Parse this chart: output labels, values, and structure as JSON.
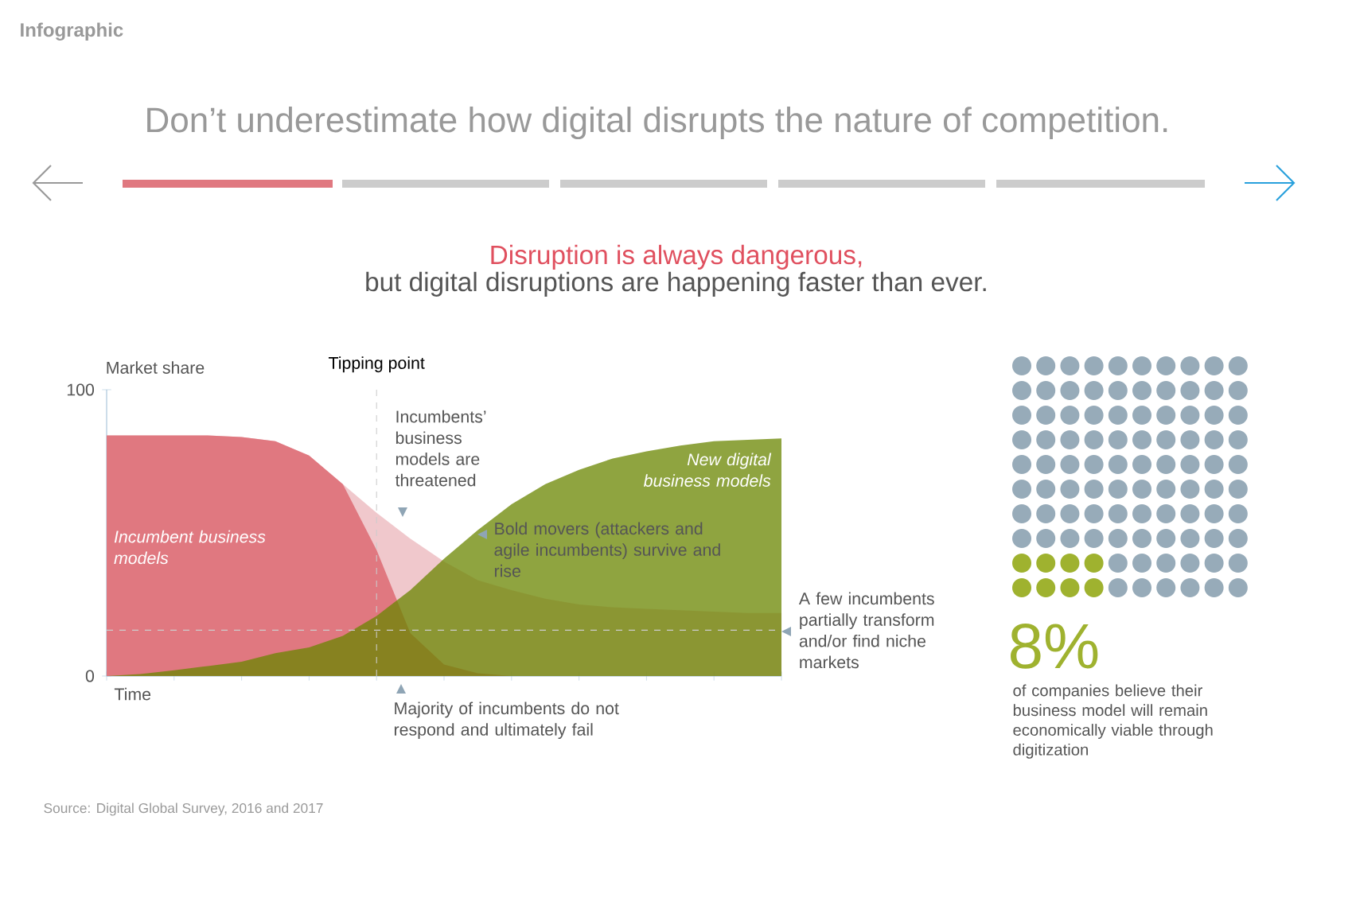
{
  "chart_data": [
    {
      "type": "area",
      "title": "Don’t underestimate how digital disrupts the nature of competition.",
      "subtitle": "Disruption is always dangerous,",
      "xlabel": "Time",
      "ylabel": "Market share",
      "categories": [
        null,
        null,
        null,
        null,
        null,
        null,
        null,
        null,
        null,
        null,
        null,
        null,
        null,
        null,
        null,
        null,
        null,
        null,
        null,
        null,
        null
      ],
      "ylim": [
        0,
        100
      ],
      "yticks": [
        0,
        100
      ],
      "tick_labels": "y",
      "series": [
        {
          "name": null,
          "color": "#e49aa2",
          "values": [
            84,
            84,
            84,
            84,
            83.5,
            82,
            77,
            67,
            57,
            48,
            40,
            33.5,
            30,
            27,
            25,
            24,
            23.5,
            23,
            22.5,
            22,
            22
          ]
        },
        {
          "name": "Incumbent business models",
          "color": "#e07880",
          "values": [
            84,
            84,
            84,
            84,
            83.5,
            82,
            77,
            67,
            44,
            15,
            4,
            1,
            0,
            null,
            null,
            null,
            null,
            null,
            null,
            null,
            null
          ]
        },
        {
          "name": "New digital business models",
          "color": "#698500",
          "values": [
            0,
            0.7,
            2,
            3.5,
            5,
            8,
            10,
            14,
            21,
            30,
            41,
            51,
            60,
            67,
            72,
            76,
            78.5,
            80.5,
            82,
            82.5,
            83
          ]
        }
      ],
      "ref_lines": [
        {
          "axis": "x",
          "label": "Tipping point",
          "color": "#cccccc",
          "line_style": "dashed"
        },
        {
          "axis": "y",
          "value": 16,
          "label": "A few incumbents partially transform and/or find niche markets",
          "color": "#cccccc",
          "line_style": "dashed"
        }
      ],
      "annotations": [
        "Infographic",
        "but digital disruptions are happening faster than ever.",
        "Source: Digital Global Survey, 2016 and 2017",
        "Incumbents’ business models are threatened",
        "Bold movers (attackers and agile incumbents) survive and rise",
        "Majority of incumbents do not respond and ultimately fail"
      ]
    },
    {
      "type": "other",
      "values": [
        8
      ],
      "value_labels": [
        "8%"
      ],
      "colors": [
        "#9fb22f"
      ],
      "annotations": [
        "of companies believe their business model will remain economically viable through digitization"
      ]
    }
  ]
}
